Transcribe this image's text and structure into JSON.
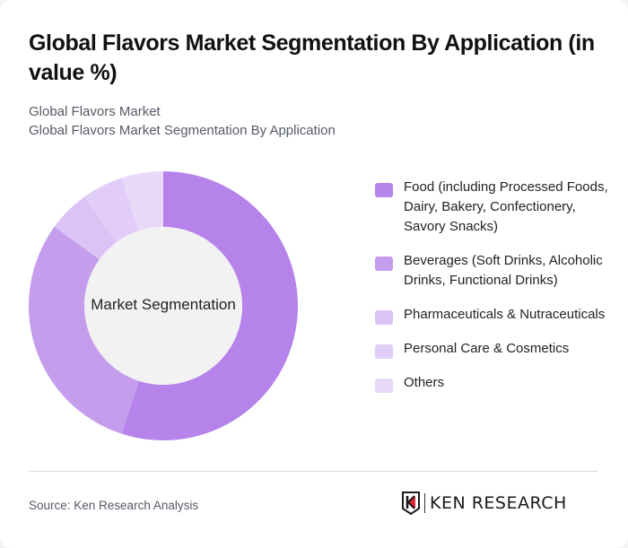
{
  "header": {
    "title": "Global Flavors Market Segmentation By Application (in value %)",
    "subtitle_line1": "Global Flavors Market",
    "subtitle_line2": "Global Flavors Market Segmentation By Application"
  },
  "chart": {
    "center_label": "Market Segmentation",
    "center_fill": "#f2f2f2"
  },
  "legend": {
    "items": [
      {
        "label": "Food (including Processed Foods, Dairy, Bakery, Confectionery, Savory Snacks)",
        "color": "#b583ea"
      },
      {
        "label": "Beverages (Soft Drinks, Alcoholic Drinks, Functional Drinks)",
        "color": "#c49ded"
      },
      {
        "label": "Pharmaceuticals & Nutraceuticals",
        "color": "#dbc3f5"
      },
      {
        "label": "Personal Care & Cosmetics",
        "color": "#e1cdf7"
      },
      {
        "label": "Others",
        "color": "#e9dafa"
      }
    ]
  },
  "footer": {
    "source": "Source: Ken Research Analysis",
    "logo_text": "KEN RESEARCH",
    "logo_icon": "ken-research-k-shield-icon"
  },
  "chart_data": {
    "type": "pie",
    "variant": "donut",
    "title": "Global Flavors Market Segmentation By Application (in value %)",
    "subtitle": "Global Flavors Market — Global Flavors Market Segmentation By Application",
    "center_label": "Market Segmentation",
    "categories": [
      "Food (including Processed Foods, Dairy, Bakery, Confectionery, Savory Snacks)",
      "Beverages (Soft Drinks, Alcoholic Drinks, Functional Drinks)",
      "Pharmaceuticals & Nutraceuticals",
      "Personal Care & Cosmetics",
      "Others"
    ],
    "values": [
      55,
      30,
      5,
      5,
      5
    ],
    "unit": "%",
    "colors": [
      "#b583ea",
      "#c49ded",
      "#dbc3f5",
      "#e1cdf7",
      "#e9dafa"
    ],
    "start_angle": "12 o'clock, clockwise",
    "legend_position": "right",
    "source": "Source: Ken Research Analysis"
  }
}
